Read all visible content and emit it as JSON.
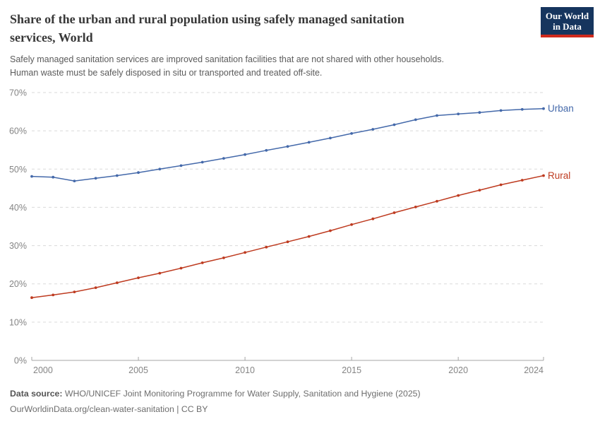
{
  "header": {
    "title_lines": [
      "Share of the urban and rural population using safely managed sanitation",
      "services, World"
    ],
    "subtitle_lines": [
      "Safely managed sanitation services are improved sanitation facilities that are not shared with other households.",
      "Human waste must be safely disposed in situ or transported and treated off-site."
    ],
    "logo": {
      "line1": "Our World",
      "line2": "in Data"
    }
  },
  "chart_data": {
    "type": "line",
    "title": "Share of the urban and rural population using safely managed sanitation services, World",
    "xlabel": "",
    "ylabel": "",
    "x": [
      2000,
      2001,
      2002,
      2003,
      2004,
      2005,
      2006,
      2007,
      2008,
      2009,
      2010,
      2011,
      2012,
      2013,
      2014,
      2015,
      2016,
      2017,
      2018,
      2019,
      2020,
      2021,
      2022,
      2023,
      2024
    ],
    "series": [
      {
        "name": "Urban",
        "color": "#4469aa",
        "values": [
          48.1,
          47.9,
          46.9,
          47.6,
          48.3,
          49.1,
          50.0,
          50.9,
          51.8,
          52.8,
          53.8,
          54.9,
          55.9,
          57.0,
          58.1,
          59.3,
          60.4,
          61.6,
          62.9,
          64.0,
          64.4,
          64.8,
          65.3,
          65.6,
          65.8
        ]
      },
      {
        "name": "Rural",
        "color": "#be3b20",
        "values": [
          16.4,
          17.1,
          17.9,
          19.0,
          20.3,
          21.6,
          22.8,
          24.1,
          25.5,
          26.8,
          28.2,
          29.6,
          31.0,
          32.4,
          33.9,
          35.5,
          37.0,
          38.6,
          40.1,
          41.6,
          43.1,
          44.5,
          45.9,
          47.1,
          48.3
        ]
      }
    ],
    "xlim": [
      2000,
      2024
    ],
    "ylim": [
      0,
      70
    ],
    "yticks": [
      0,
      10,
      20,
      30,
      40,
      50,
      60,
      70
    ],
    "ytick_format": "{}%",
    "xticks": [
      2000,
      2005,
      2010,
      2015,
      2020,
      2024
    ],
    "grid": true,
    "legend_position": "end-of-line"
  },
  "colors": {
    "urban": "#4469aa",
    "rural": "#be3b20",
    "gridline": "#dadada",
    "axis": "#a6a6a6",
    "tick_label": "#858585",
    "logo_bg": "#16355e",
    "logo_accent": "#cf2a1d"
  },
  "footer": {
    "source_label": "Data source:",
    "source_text": " WHO/UNICEF Joint Monitoring Programme for Water Supply, Sanitation and Hygiene (2025)",
    "link_text": "OurWorldinData.org/clean-water-sanitation | CC BY"
  }
}
